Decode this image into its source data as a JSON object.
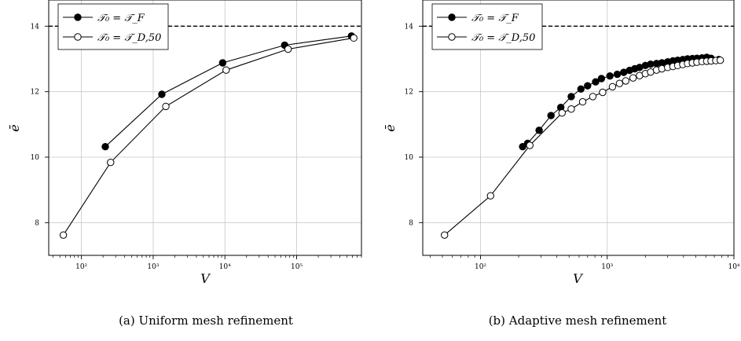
{
  "chart_data": [
    {
      "type": "line",
      "caption": "(a) Uniform mesh refinement",
      "xlabel": "V",
      "ylabel": "ē",
      "xscale": "log",
      "xlim": [
        35,
        800000
      ],
      "ylim": [
        7.0,
        14.8
      ],
      "xticks": [
        {
          "value": 100,
          "label": "10²"
        },
        {
          "value": 1000,
          "label": "10³"
        },
        {
          "value": 10000,
          "label": "10⁴"
        },
        {
          "value": 100000,
          "label": "10⁵"
        }
      ],
      "yticks": [
        8,
        10,
        12,
        14
      ],
      "grid": true,
      "legend_position": "top-left",
      "reference_line": {
        "y": 14,
        "style": "dashed"
      },
      "series": [
        {
          "name": "𝒯₀ = 𝒯_F",
          "marker": "filled-circle",
          "x": [
            215,
            1320,
            9300,
            68000,
            580000
          ],
          "y": [
            10.32,
            11.92,
            12.88,
            13.42,
            13.7
          ]
        },
        {
          "name": "𝒯₀ = 𝒯_D,50",
          "marker": "open-circle",
          "x": [
            56,
            255,
            1500,
            10400,
            76000,
            625000
          ],
          "y": [
            7.62,
            9.84,
            11.55,
            12.66,
            13.3,
            13.64
          ]
        }
      ]
    },
    {
      "type": "line",
      "caption": "(b) Adaptive mesh refinement",
      "xlabel": "V",
      "ylabel": "ē",
      "xscale": "log",
      "xlim": [
        35,
        10000
      ],
      "ylim": [
        7.0,
        14.8
      ],
      "xticks": [
        {
          "value": 100,
          "label": "10²"
        },
        {
          "value": 1000,
          "label": "10³"
        },
        {
          "value": 10000,
          "label": "10⁴"
        }
      ],
      "yticks": [
        8,
        10,
        12,
        14
      ],
      "grid": true,
      "legend_position": "top-left",
      "reference_line": {
        "y": 14,
        "style": "dashed"
      },
      "series": [
        {
          "name": "𝒯₀ = 𝒯_F",
          "marker": "filled-circle",
          "x": [
            215,
            235,
            290,
            360,
            430,
            520,
            620,
            700,
            810,
            900,
            1050,
            1200,
            1350,
            1500,
            1650,
            1800,
            2000,
            2200,
            2450,
            2700,
            3000,
            3300,
            3600,
            3950,
            4300,
            4700,
            5100,
            5600,
            6100,
            6600,
            7600
          ],
          "y": [
            10.32,
            10.42,
            10.82,
            11.27,
            11.52,
            11.85,
            12.08,
            12.18,
            12.3,
            12.4,
            12.48,
            12.53,
            12.59,
            12.65,
            12.7,
            12.74,
            12.8,
            12.84,
            12.86,
            12.88,
            12.91,
            12.94,
            12.96,
            12.98,
            13.0,
            13.01,
            13.02,
            13.03,
            13.05,
            13.02,
            12.98
          ]
        },
        {
          "name": "𝒯₀ = 𝒯_D,50",
          "marker": "open-circle",
          "x": [
            52,
            120,
            245,
            440,
            520,
            640,
            770,
            920,
            1100,
            1250,
            1400,
            1600,
            1800,
            2000,
            2200,
            2450,
            2700,
            3000,
            3300,
            3600,
            3950,
            4300,
            4700,
            5100,
            5600,
            6100,
            6600,
            7200,
            7800
          ],
          "y": [
            7.62,
            8.82,
            10.36,
            11.35,
            11.47,
            11.69,
            11.85,
            11.98,
            12.15,
            12.25,
            12.33,
            12.42,
            12.49,
            12.55,
            12.6,
            12.66,
            12.7,
            12.74,
            12.77,
            12.8,
            12.83,
            12.86,
            12.88,
            12.9,
            12.92,
            12.93,
            12.94,
            12.95,
            12.96
          ]
        }
      ]
    }
  ]
}
